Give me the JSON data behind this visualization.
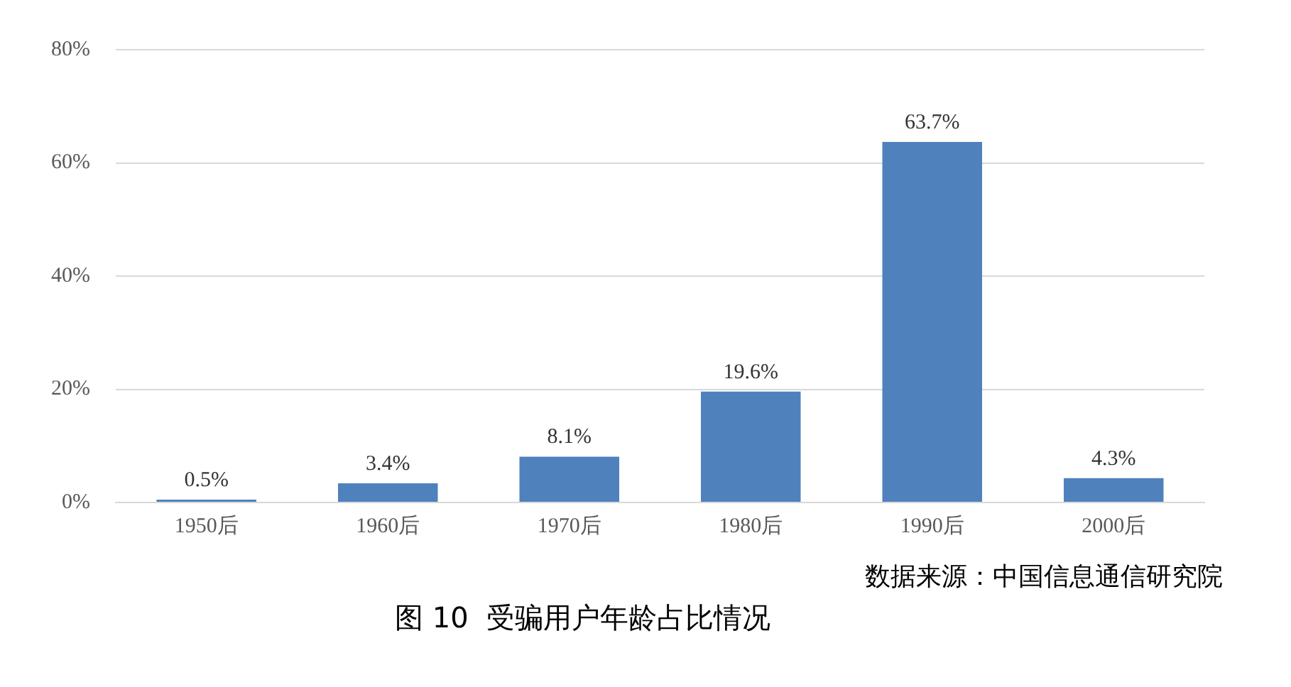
{
  "chart_data": {
    "type": "bar",
    "title": "图 10  受骗用户年龄占比情况",
    "annotations": [
      "数据来源：中国信息通信研究院"
    ],
    "categories": [
      "1950后",
      "1960后",
      "1970后",
      "1980后",
      "1990后",
      "2000后"
    ],
    "values": [
      0.5,
      3.4,
      8.1,
      19.6,
      63.7,
      4.3
    ],
    "value_labels": [
      "0.5%",
      "3.4%",
      "8.1%",
      "19.6%",
      "63.7%",
      "4.3%"
    ],
    "color": "#4f81bd",
    "ylim": [
      0,
      80
    ],
    "yticks": [
      {
        "value": 0,
        "label": "0%"
      },
      {
        "value": 20,
        "label": "20%"
      },
      {
        "value": 40,
        "label": "40%"
      },
      {
        "value": 60,
        "label": "60%"
      },
      {
        "value": 80,
        "label": "80%"
      }
    ],
    "grid": "y"
  }
}
